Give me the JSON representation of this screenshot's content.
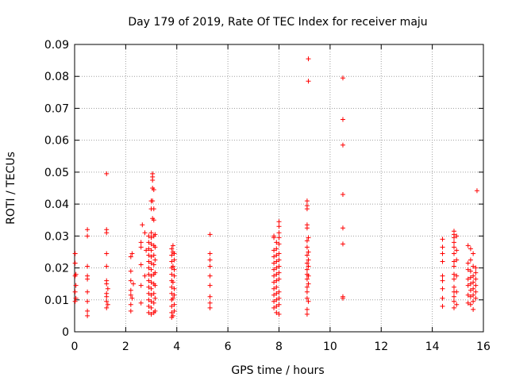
{
  "chart_data": {
    "type": "scatter",
    "title": "Day 179 of 2019, Rate Of TEC Index for receiver maju",
    "xlabel": "GPS time / hours",
    "ylabel": "ROTI / TECUs",
    "xlim": [
      0,
      16
    ],
    "ylim": [
      0,
      0.09
    ],
    "x_ticks": [
      0,
      2,
      4,
      6,
      8,
      10,
      12,
      14,
      16
    ],
    "x_tick_labels": [
      "0",
      "2",
      "4",
      "6",
      "8",
      "10",
      "12",
      "14",
      "16"
    ],
    "y_ticks": [
      0,
      0.01,
      0.02,
      0.03,
      0.04,
      0.05,
      0.06,
      0.07,
      0.08,
      0.09
    ],
    "y_tick_labels": [
      "0",
      "0.01",
      "0.02",
      "0.03",
      "0.04",
      "0.05",
      "0.06",
      "0.07",
      "0.08",
      "0.09"
    ],
    "grid": true,
    "marker": "+",
    "color": "#ff0000",
    "series": [
      {
        "name": "ROTI",
        "points": [
          [
            0.02,
            0.0095
          ],
          [
            0.02,
            0.0125
          ],
          [
            0.02,
            0.0175
          ],
          [
            0.02,
            0.0215
          ],
          [
            0.02,
            0.0245
          ],
          [
            0.05,
            0.0105
          ],
          [
            0.05,
            0.0145
          ],
          [
            0.05,
            0.018
          ],
          [
            0.5,
            0.005
          ],
          [
            0.5,
            0.0065
          ],
          [
            0.5,
            0.0095
          ],
          [
            0.5,
            0.0125
          ],
          [
            0.5,
            0.0165
          ],
          [
            0.5,
            0.0175
          ],
          [
            0.5,
            0.0205
          ],
          [
            0.5,
            0.03
          ],
          [
            0.5,
            0.032
          ],
          [
            1.25,
            0.0075
          ],
          [
            1.25,
            0.0095
          ],
          [
            1.25,
            0.011
          ],
          [
            1.25,
            0.012
          ],
          [
            1.25,
            0.015
          ],
          [
            1.25,
            0.016
          ],
          [
            1.25,
            0.0205
          ],
          [
            1.25,
            0.0245
          ],
          [
            1.25,
            0.031
          ],
          [
            1.25,
            0.032
          ],
          [
            1.25,
            0.0495
          ],
          [
            1.3,
            0.0085
          ],
          [
            1.3,
            0.0135
          ],
          [
            2.2,
            0.0065
          ],
          [
            2.2,
            0.0085
          ],
          [
            2.2,
            0.0115
          ],
          [
            2.2,
            0.013
          ],
          [
            2.2,
            0.016
          ],
          [
            2.2,
            0.019
          ],
          [
            2.2,
            0.0235
          ],
          [
            2.25,
            0.0245
          ],
          [
            2.25,
            0.0105
          ],
          [
            2.3,
            0.015
          ],
          [
            2.6,
            0.009
          ],
          [
            2.6,
            0.0145
          ],
          [
            2.6,
            0.021
          ],
          [
            2.6,
            0.0265
          ],
          [
            2.6,
            0.028
          ],
          [
            2.65,
            0.0335
          ],
          [
            2.75,
            0.0175
          ],
          [
            2.75,
            0.031
          ],
          [
            2.8,
            0.0255
          ],
          [
            2.9,
            0.006
          ],
          [
            2.9,
            0.008
          ],
          [
            2.9,
            0.01
          ],
          [
            2.9,
            0.012
          ],
          [
            2.9,
            0.014
          ],
          [
            2.9,
            0.016
          ],
          [
            2.9,
            0.018
          ],
          [
            2.9,
            0.02
          ],
          [
            2.9,
            0.022
          ],
          [
            2.9,
            0.024
          ],
          [
            2.9,
            0.026
          ],
          [
            2.9,
            0.028
          ],
          [
            2.9,
            0.03
          ],
          [
            3.0,
            0.0055
          ],
          [
            3.0,
            0.0075
          ],
          [
            3.0,
            0.0095
          ],
          [
            3.0,
            0.0115
          ],
          [
            3.0,
            0.0135
          ],
          [
            3.0,
            0.0155
          ],
          [
            3.0,
            0.0175
          ],
          [
            3.0,
            0.0195
          ],
          [
            3.0,
            0.0215
          ],
          [
            3.0,
            0.0235
          ],
          [
            3.0,
            0.0255
          ],
          [
            3.0,
            0.0275
          ],
          [
            3.0,
            0.0295
          ],
          [
            3.0,
            0.031
          ],
          [
            3.0,
            0.0385
          ],
          [
            3.0,
            0.041
          ],
          [
            3.05,
            0.045
          ],
          [
            3.05,
            0.0475
          ],
          [
            3.05,
            0.0485
          ],
          [
            3.05,
            0.0495
          ],
          [
            3.05,
            0.041
          ],
          [
            3.05,
            0.0355
          ],
          [
            3.1,
            0.006
          ],
          [
            3.1,
            0.009
          ],
          [
            3.1,
            0.012
          ],
          [
            3.1,
            0.015
          ],
          [
            3.1,
            0.018
          ],
          [
            3.1,
            0.021
          ],
          [
            3.1,
            0.024
          ],
          [
            3.1,
            0.027
          ],
          [
            3.1,
            0.03
          ],
          [
            3.1,
            0.0385
          ],
          [
            3.1,
            0.035
          ],
          [
            3.1,
            0.0445
          ],
          [
            3.15,
            0.0065
          ],
          [
            3.15,
            0.0105
          ],
          [
            3.15,
            0.0145
          ],
          [
            3.15,
            0.0185
          ],
          [
            3.15,
            0.0225
          ],
          [
            3.15,
            0.0265
          ],
          [
            3.15,
            0.0305
          ],
          [
            3.8,
            0.0045
          ],
          [
            3.8,
            0.006
          ],
          [
            3.8,
            0.008
          ],
          [
            3.8,
            0.01
          ],
          [
            3.8,
            0.012
          ],
          [
            3.8,
            0.014
          ],
          [
            3.8,
            0.016
          ],
          [
            3.8,
            0.018
          ],
          [
            3.8,
            0.02
          ],
          [
            3.8,
            0.022
          ],
          [
            3.8,
            0.024
          ],
          [
            3.8,
            0.026
          ],
          [
            3.85,
            0.005
          ],
          [
            3.85,
            0.0105
          ],
          [
            3.85,
            0.0155
          ],
          [
            3.85,
            0.0205
          ],
          [
            3.85,
            0.025
          ],
          [
            3.85,
            0.027
          ],
          [
            3.9,
            0.0065
          ],
          [
            3.9,
            0.0085
          ],
          [
            3.9,
            0.0115
          ],
          [
            3.9,
            0.0135
          ],
          [
            3.9,
            0.0175
          ],
          [
            3.9,
            0.0195
          ],
          [
            3.9,
            0.0225
          ],
          [
            3.9,
            0.0245
          ],
          [
            5.3,
            0.0075
          ],
          [
            5.3,
            0.009
          ],
          [
            5.3,
            0.011
          ],
          [
            5.3,
            0.0145
          ],
          [
            5.3,
            0.0175
          ],
          [
            5.3,
            0.0205
          ],
          [
            5.3,
            0.0225
          ],
          [
            5.3,
            0.0245
          ],
          [
            5.3,
            0.0305
          ],
          [
            7.8,
            0.0075
          ],
          [
            7.8,
            0.0095
          ],
          [
            7.8,
            0.0115
          ],
          [
            7.8,
            0.0135
          ],
          [
            7.8,
            0.0155
          ],
          [
            7.8,
            0.0175
          ],
          [
            7.8,
            0.0195
          ],
          [
            7.8,
            0.0215
          ],
          [
            7.8,
            0.0235
          ],
          [
            7.8,
            0.0255
          ],
          [
            7.8,
            0.0295
          ],
          [
            7.8,
            0.03
          ],
          [
            7.9,
            0.006
          ],
          [
            7.9,
            0.008
          ],
          [
            7.9,
            0.01
          ],
          [
            7.9,
            0.012
          ],
          [
            7.9,
            0.014
          ],
          [
            7.9,
            0.016
          ],
          [
            7.9,
            0.018
          ],
          [
            7.9,
            0.02
          ],
          [
            7.9,
            0.022
          ],
          [
            7.9,
            0.024
          ],
          [
            7.9,
            0.026
          ],
          [
            7.9,
            0.028
          ],
          [
            8.0,
            0.0055
          ],
          [
            8.0,
            0.0085
          ],
          [
            8.0,
            0.0105
          ],
          [
            8.0,
            0.0125
          ],
          [
            8.0,
            0.0165
          ],
          [
            8.0,
            0.0185
          ],
          [
            8.0,
            0.0205
          ],
          [
            8.0,
            0.0225
          ],
          [
            8.0,
            0.0245
          ],
          [
            8.0,
            0.0275
          ],
          [
            8.0,
            0.0295
          ],
          [
            8.0,
            0.031
          ],
          [
            8.0,
            0.033
          ],
          [
            8.0,
            0.0345
          ],
          [
            9.1,
            0.0055
          ],
          [
            9.1,
            0.007
          ],
          [
            9.1,
            0.0105
          ],
          [
            9.1,
            0.0125
          ],
          [
            9.1,
            0.014
          ],
          [
            9.1,
            0.0165
          ],
          [
            9.1,
            0.018
          ],
          [
            9.1,
            0.0195
          ],
          [
            9.1,
            0.0215
          ],
          [
            9.1,
            0.024
          ],
          [
            9.1,
            0.0265
          ],
          [
            9.1,
            0.0285
          ],
          [
            9.1,
            0.0325
          ],
          [
            9.1,
            0.0335
          ],
          [
            9.1,
            0.0385
          ],
          [
            9.1,
            0.0395
          ],
          [
            9.1,
            0.041
          ],
          [
            9.15,
            0.0095
          ],
          [
            9.15,
            0.015
          ],
          [
            9.15,
            0.0175
          ],
          [
            9.15,
            0.0205
          ],
          [
            9.15,
            0.0225
          ],
          [
            9.15,
            0.025
          ],
          [
            9.15,
            0.0295
          ],
          [
            9.15,
            0.0785
          ],
          [
            9.15,
            0.0855
          ],
          [
            10.5,
            0.0105
          ],
          [
            10.5,
            0.011
          ],
          [
            10.5,
            0.0275
          ],
          [
            10.5,
            0.0325
          ],
          [
            10.5,
            0.043
          ],
          [
            10.5,
            0.0585
          ],
          [
            10.5,
            0.0665
          ],
          [
            10.5,
            0.0795
          ],
          [
            14.4,
            0.008
          ],
          [
            14.4,
            0.0105
          ],
          [
            14.4,
            0.0135
          ],
          [
            14.4,
            0.016
          ],
          [
            14.4,
            0.0175
          ],
          [
            14.4,
            0.022
          ],
          [
            14.4,
            0.0245
          ],
          [
            14.4,
            0.0265
          ],
          [
            14.4,
            0.029
          ],
          [
            14.85,
            0.0075
          ],
          [
            14.85,
            0.0095
          ],
          [
            14.85,
            0.011
          ],
          [
            14.85,
            0.0125
          ],
          [
            14.85,
            0.014
          ],
          [
            14.85,
            0.0165
          ],
          [
            14.85,
            0.018
          ],
          [
            14.85,
            0.0205
          ],
          [
            14.85,
            0.022
          ],
          [
            14.85,
            0.0245
          ],
          [
            14.85,
            0.0265
          ],
          [
            14.85,
            0.028
          ],
          [
            14.85,
            0.0295
          ],
          [
            14.85,
            0.0305
          ],
          [
            14.85,
            0.0315
          ],
          [
            14.95,
            0.0085
          ],
          [
            14.95,
            0.0125
          ],
          [
            14.95,
            0.0175
          ],
          [
            14.95,
            0.0225
          ],
          [
            14.95,
            0.0255
          ],
          [
            14.95,
            0.03
          ],
          [
            15.4,
            0.009
          ],
          [
            15.4,
            0.0115
          ],
          [
            15.4,
            0.0145
          ],
          [
            15.4,
            0.0165
          ],
          [
            15.4,
            0.0195
          ],
          [
            15.4,
            0.0215
          ],
          [
            15.4,
            0.027
          ],
          [
            15.5,
            0.0085
          ],
          [
            15.5,
            0.011
          ],
          [
            15.5,
            0.013
          ],
          [
            15.5,
            0.015
          ],
          [
            15.5,
            0.017
          ],
          [
            15.5,
            0.019
          ],
          [
            15.5,
            0.0225
          ],
          [
            15.5,
            0.026
          ],
          [
            15.6,
            0.007
          ],
          [
            15.6,
            0.0095
          ],
          [
            15.6,
            0.0115
          ],
          [
            15.6,
            0.0135
          ],
          [
            15.6,
            0.0155
          ],
          [
            15.6,
            0.0175
          ],
          [
            15.6,
            0.0205
          ],
          [
            15.6,
            0.0245
          ],
          [
            15.7,
            0.0105
          ],
          [
            15.7,
            0.0125
          ],
          [
            15.7,
            0.0145
          ],
          [
            15.7,
            0.0165
          ],
          [
            15.7,
            0.0185
          ],
          [
            15.7,
            0.02
          ],
          [
            15.75,
            0.0442
          ]
        ]
      }
    ]
  }
}
